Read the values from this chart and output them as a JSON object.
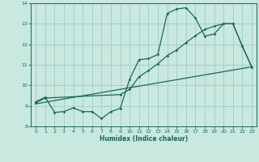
{
  "bg_color": "#c8e8e0",
  "grid_color": "#a8d0c8",
  "line_color": "#1a6858",
  "xlabel": "Humidex (Indice chaleur)",
  "xlim": [
    -0.5,
    23.5
  ],
  "ylim": [
    8.0,
    14.0
  ],
  "yticks": [
    8,
    9,
    10,
    11,
    12,
    13,
    14
  ],
  "xticks": [
    0,
    1,
    2,
    3,
    4,
    5,
    6,
    7,
    8,
    9,
    10,
    11,
    12,
    13,
    14,
    15,
    16,
    17,
    18,
    19,
    20,
    21,
    22,
    23
  ],
  "series1_x": [
    0,
    1,
    2,
    3,
    4,
    5,
    6,
    7,
    8,
    9,
    10,
    11,
    12,
    13,
    14,
    15,
    16,
    17,
    18,
    19,
    20,
    21,
    22,
    23
  ],
  "series1_y": [
    9.2,
    9.42,
    8.68,
    8.72,
    8.9,
    8.72,
    8.72,
    8.38,
    8.72,
    8.88,
    10.3,
    11.25,
    11.3,
    11.5,
    13.5,
    13.72,
    13.78,
    13.28,
    12.4,
    12.5,
    13.0,
    13.0,
    11.9,
    10.9
  ],
  "series2_x": [
    0,
    1,
    9,
    10,
    11,
    12,
    13,
    14,
    15,
    16,
    17,
    18,
    19,
    20,
    21,
    22,
    23
  ],
  "series2_y": [
    9.15,
    9.38,
    9.55,
    9.8,
    10.42,
    10.72,
    11.05,
    11.45,
    11.72,
    12.08,
    12.42,
    12.72,
    12.88,
    13.0,
    13.0,
    11.9,
    10.9
  ],
  "series3_x": [
    0,
    23
  ],
  "series3_y": [
    9.1,
    10.9
  ]
}
